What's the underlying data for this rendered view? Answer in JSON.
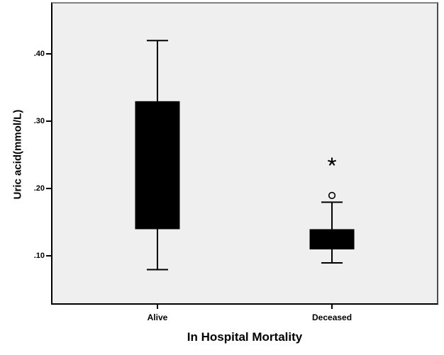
{
  "colors": {
    "page_background": "#ffffff",
    "plot_background": "#efefef",
    "box_fill": "#000000",
    "axis_line": "#000000",
    "frame_top": "#7f7f7f",
    "frame_right": "#4d4d4d"
  },
  "chart_data": {
    "type": "boxplot",
    "title": "",
    "xlabel": "In Hospital Mortality",
    "ylabel": "Uric acid(mmol/L)",
    "categories": [
      "Alive",
      "Deceased"
    ],
    "y_axis": {
      "min": 0.03,
      "max": 0.475,
      "ticks": [
        0.1,
        0.2,
        0.3,
        0.4
      ],
      "tick_labels": [
        ".10",
        ".20",
        ".30",
        ".40"
      ],
      "grid": false
    },
    "legend": "none",
    "boxes": [
      {
        "category": "Alive",
        "whisker_low": 0.08,
        "q1": 0.14,
        "q3": 0.33,
        "whisker_high": 0.42,
        "median_visible": false,
        "outliers": []
      },
      {
        "category": "Deceased",
        "whisker_low": 0.09,
        "q1": 0.11,
        "q3": 0.14,
        "whisker_high": 0.18,
        "median_visible": false,
        "outliers": [
          {
            "value": 0.19,
            "symbol": "circle",
            "type": "mild"
          },
          {
            "value": 0.24,
            "symbol": "asterisk",
            "type": "extreme"
          }
        ]
      }
    ]
  }
}
